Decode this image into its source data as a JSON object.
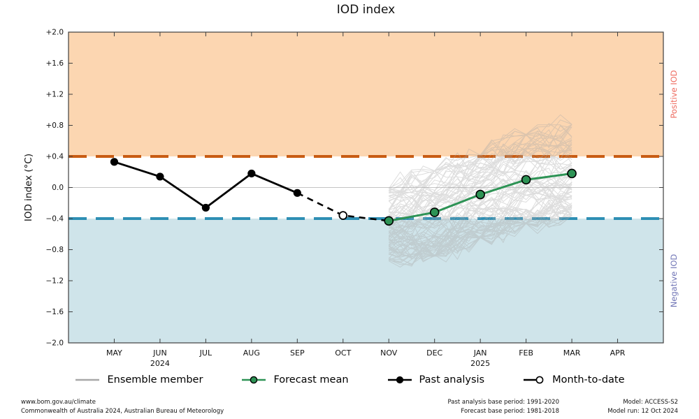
{
  "colors": {
    "positive_band": "#fcd6b1",
    "positive_line": "#c85c13",
    "negative_band": "#cfe4ea",
    "negative_line": "#2e8fb4",
    "forecast_green": "#2d9355",
    "ensemble_gray": "#a8a8a8",
    "past_black": "#000000",
    "open_marker_fill": "#ffffff",
    "zero_line": "#c4c4c4",
    "spine": "#3f3f3f",
    "positive_label_color": "#ee6a5e",
    "negative_label_color": "#6f74b5"
  },
  "chart_data": {
    "type": "line",
    "title": "IOD index",
    "ylabel": "IOD index (°C)",
    "ylim": [
      -2.0,
      2.0
    ],
    "ytick_values": [
      2.0,
      1.6,
      1.2,
      0.8,
      0.4,
      0.0,
      -0.4,
      -0.8,
      -1.2,
      -1.6,
      -2.0
    ],
    "ytick_labels": [
      "+2.0",
      "+1.6",
      "+1.2",
      "+0.8",
      "+0.4",
      "0.0",
      "−0.4",
      "−0.8",
      "−1.2",
      "−1.6",
      "−2.0"
    ],
    "categories": [
      "MAY",
      "JUN",
      "JUL",
      "AUG",
      "SEP",
      "OCT",
      "NOV",
      "DEC",
      "JAN",
      "FEB",
      "MAR",
      "APR"
    ],
    "year_labels": [
      {
        "month_index": 1,
        "label": "2024"
      },
      {
        "month_index": 8,
        "label": "2025"
      }
    ],
    "thresholds": {
      "positive_iod": 0.4,
      "negative_iod": -0.4
    },
    "annotations": {
      "positive": "Positive IOD",
      "negative": "Negative IOD"
    },
    "grid": "zero-line-only",
    "legend_position": "bottom",
    "series": [
      {
        "name": "Past analysis",
        "x": [
          0,
          1,
          2,
          3,
          4
        ],
        "values": [
          0.33,
          0.14,
          -0.26,
          0.18,
          -0.07
        ]
      },
      {
        "name": "Month-to-date",
        "x": [
          4,
          5,
          6
        ],
        "values": [
          -0.07,
          -0.36,
          -0.43
        ],
        "marker_month_index": 5,
        "marker_value": -0.36
      },
      {
        "name": "Forecast mean",
        "x": [
          6,
          7,
          8,
          9,
          10
        ],
        "values": [
          -0.43,
          -0.32,
          -0.09,
          0.1,
          0.18
        ]
      }
    ],
    "ensemble": {
      "name": "Ensemble member",
      "count": 90,
      "seed": 11,
      "x": [
        6,
        7,
        8,
        9,
        10
      ],
      "envelope_min": [
        -0.95,
        -0.92,
        -0.68,
        -0.5,
        -0.4
      ],
      "envelope_max": [
        0.0,
        0.25,
        0.45,
        0.72,
        0.85
      ],
      "subdivisions": 4,
      "jitter": 0.16,
      "opacity": 0.38
    }
  },
  "legend": {
    "items": [
      {
        "label": "Ensemble member",
        "marker": "gray-line"
      },
      {
        "label": "Forecast mean",
        "marker": "green-line-circle"
      },
      {
        "label": "Past analysis",
        "marker": "black-line-dot"
      },
      {
        "label": "Month-to-date",
        "marker": "black-line-open-circle"
      }
    ]
  },
  "footer": {
    "left": [
      "www.bom.gov.au/climate",
      "Commonwealth of Australia 2024, Australian Bureau of Meteorology"
    ],
    "mid": [
      "Past analysis base period: 1991-2020",
      "Forecast base period: 1981-2018"
    ],
    "right": [
      "Model: ACCESS-S2",
      "Model run: 12 Oct 2024"
    ]
  }
}
